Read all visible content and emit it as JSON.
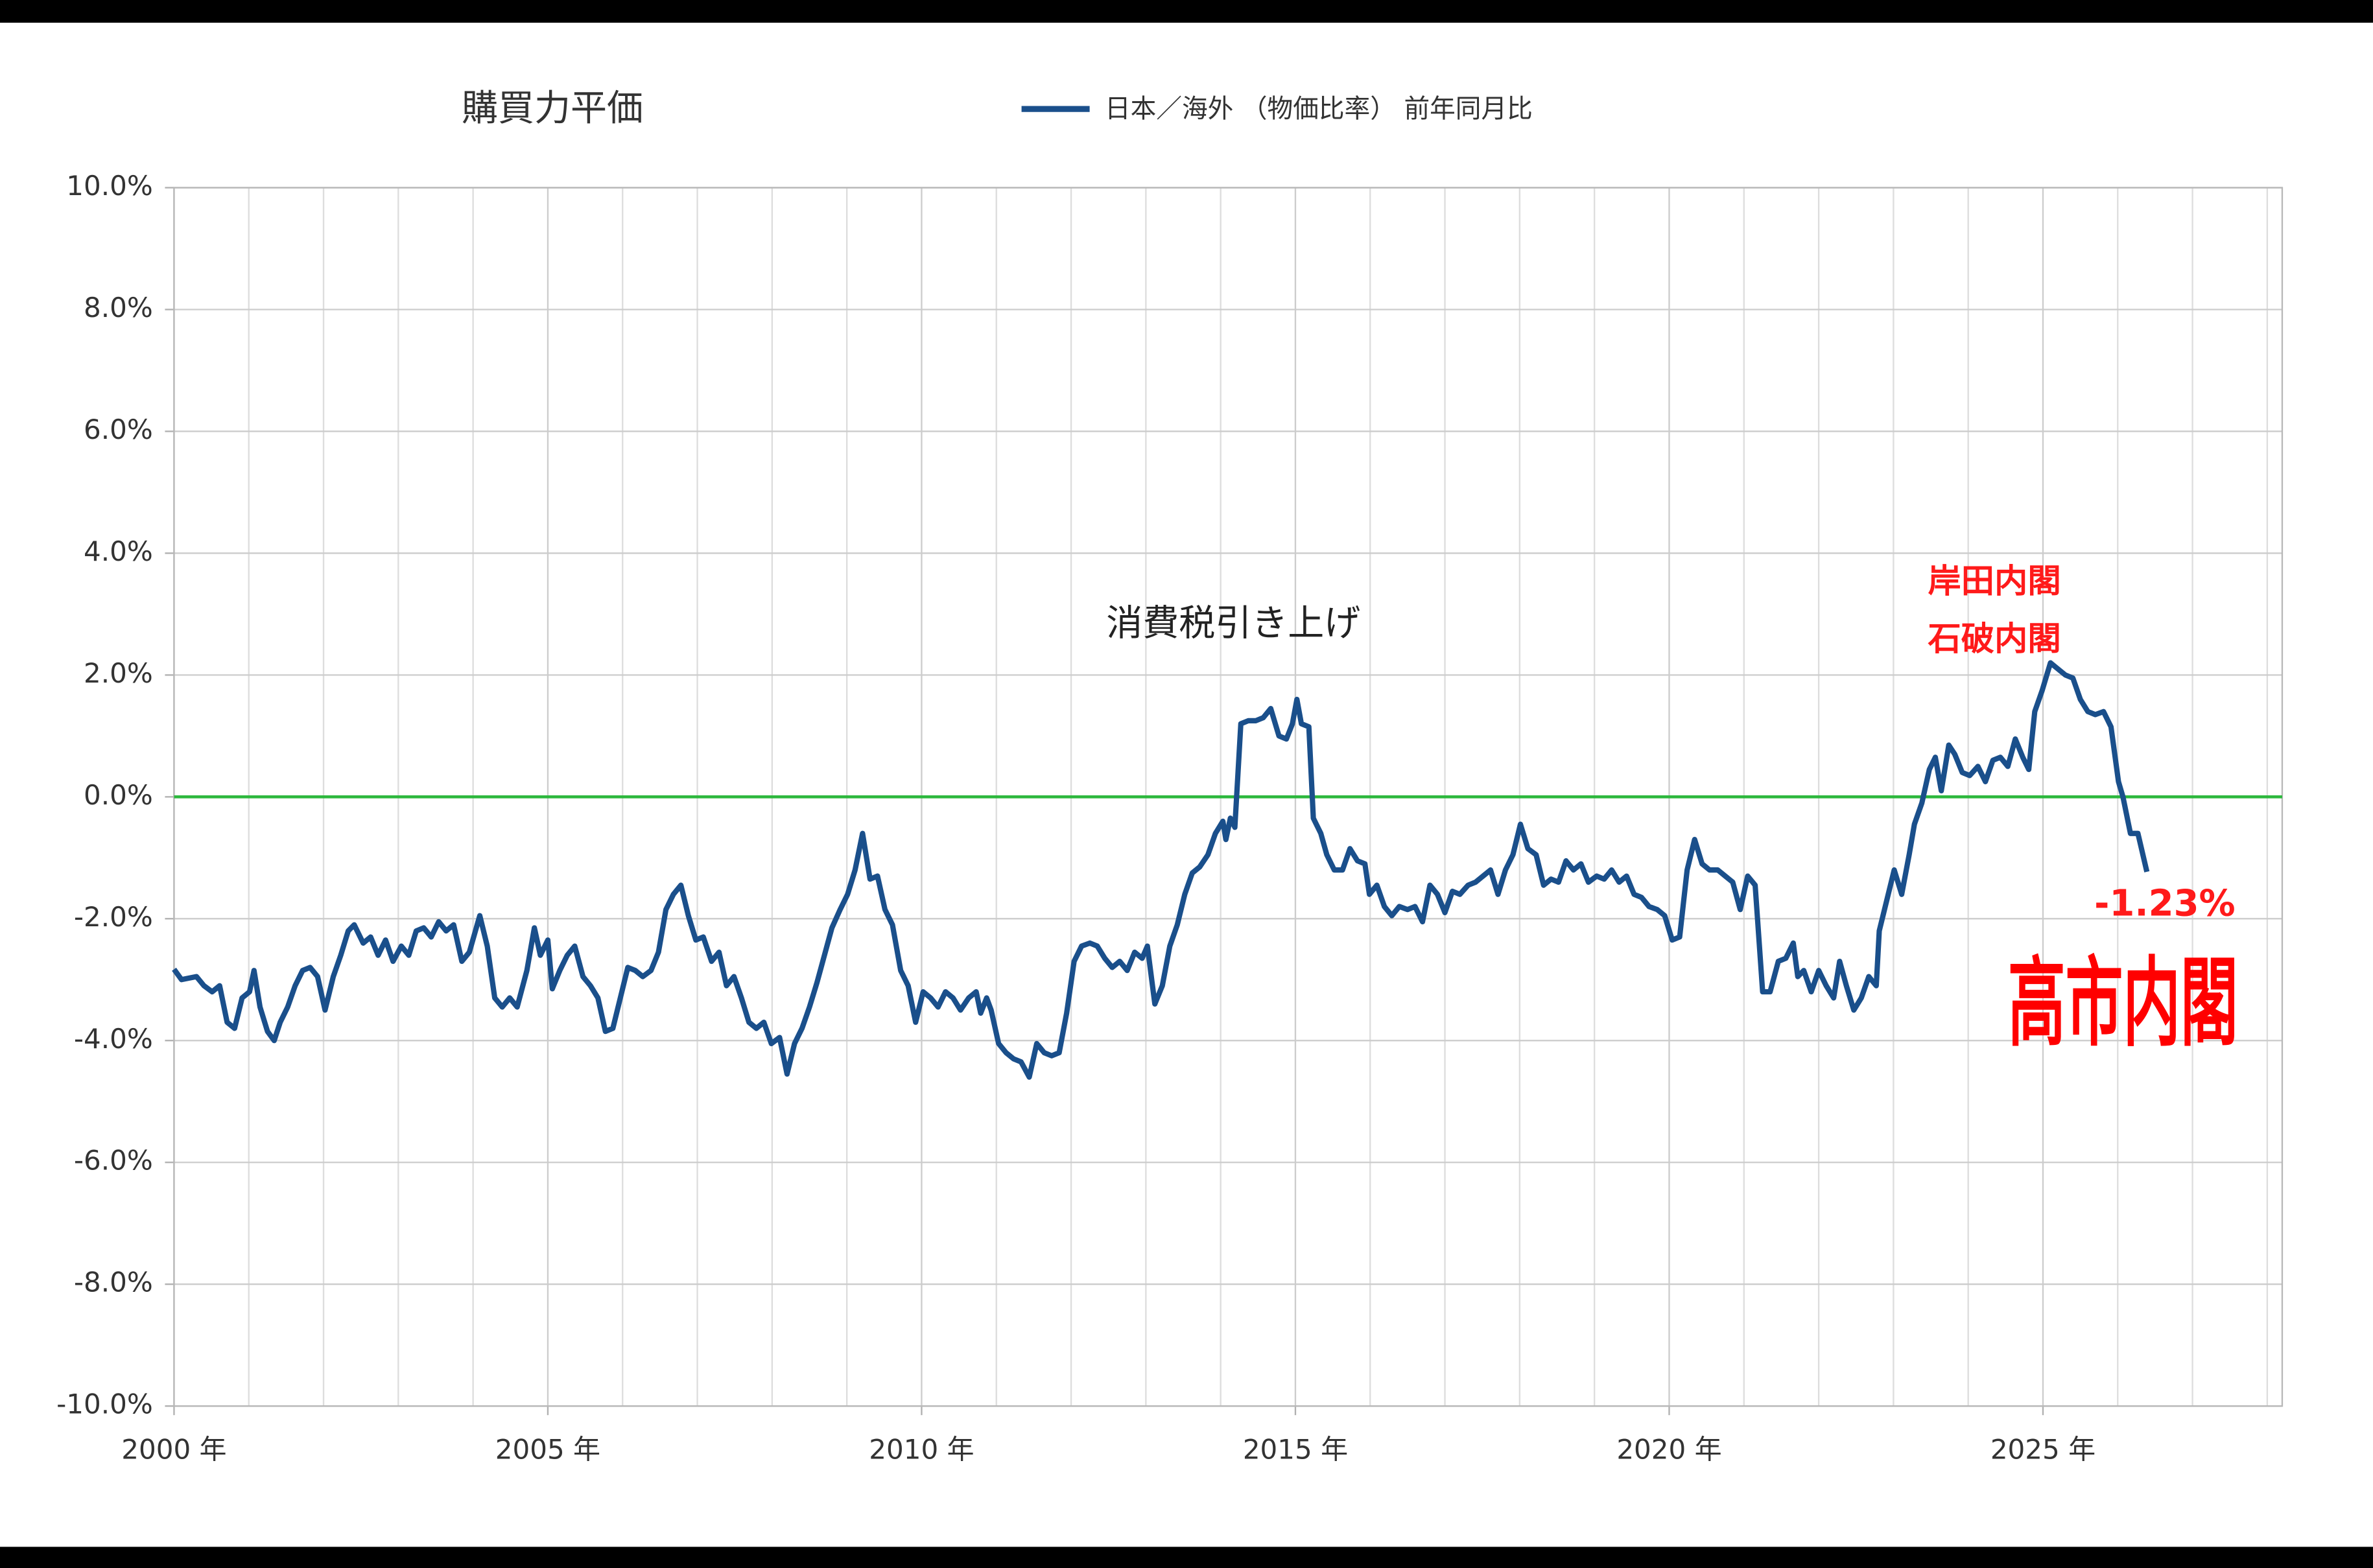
{
  "chart_data": {
    "type": "line",
    "title": "購買力平価",
    "xlim": [
      2000,
      2028.2
    ],
    "xticks": [
      {
        "value": 2000,
        "label": "2000 年"
      },
      {
        "value": 2005,
        "label": "2005 年"
      },
      {
        "value": 2010,
        "label": "2010 年"
      },
      {
        "value": 2015,
        "label": "2015 年"
      },
      {
        "value": 2020,
        "label": "2020 年"
      },
      {
        "value": 2025,
        "label": "2025 年"
      }
    ],
    "x_minor_ticks": [
      2001,
      2002,
      2003,
      2004,
      2006,
      2007,
      2008,
      2009,
      2011,
      2012,
      2013,
      2014,
      2016,
      2017,
      2018,
      2019,
      2021,
      2022,
      2023,
      2024,
      2026,
      2027,
      2028
    ],
    "ylim": [
      -10,
      10
    ],
    "yticks": [
      {
        "value": -10,
        "label": "-10.0%"
      },
      {
        "value": -8,
        "label": "-8.0%"
      },
      {
        "value": -6,
        "label": "-6.0%"
      },
      {
        "value": -4,
        "label": "-4.0%"
      },
      {
        "value": -2,
        "label": "-2.0%"
      },
      {
        "value": 0,
        "label": "0.0%"
      },
      {
        "value": 2,
        "label": "2.0%"
      },
      {
        "value": 4,
        "label": "4.0%"
      },
      {
        "value": 6,
        "label": "6.0%"
      },
      {
        "value": 8,
        "label": "8.0%"
      },
      {
        "value": 10,
        "label": "10.0%"
      }
    ],
    "grid": true,
    "reference_line": {
      "value": 0,
      "color": "#2db83d"
    },
    "legend": "top",
    "x": [
      2000.0,
      2000.1,
      2000.3,
      2000.4,
      2000.51,
      2000.61,
      2000.71,
      2000.81,
      2000.91,
      2001.01,
      2001.07,
      2001.15,
      2001.25,
      2001.34,
      2001.42,
      2001.52,
      2001.62,
      2001.72,
      2001.82,
      2001.92,
      2002.02,
      2002.13,
      2002.23,
      2002.33,
      2002.41,
      2002.53,
      2002.63,
      2002.73,
      2002.83,
      2002.93,
      2003.04,
      2003.14,
      2003.24,
      2003.34,
      2003.44,
      2003.54,
      2003.64,
      2003.74,
      2003.85,
      2003.95,
      2004.09,
      2004.19,
      2004.29,
      2004.39,
      2004.49,
      2004.59,
      2004.72,
      2004.82,
      2004.9,
      2005.0,
      2005.06,
      2005.16,
      2005.26,
      2005.36,
      2005.47,
      2005.57,
      2005.67,
      2005.77,
      2005.87,
      2005.97,
      2006.07,
      2006.17,
      2006.27,
      2006.38,
      2006.48,
      2006.58,
      2006.68,
      2006.78,
      2006.88,
      2006.98,
      2007.08,
      2007.19,
      2007.29,
      2007.39,
      2007.49,
      2007.59,
      2007.69,
      2007.79,
      2007.89,
      2007.99,
      2008.1,
      2008.2,
      2008.3,
      2008.4,
      2008.5,
      2008.6,
      2008.7,
      2008.8,
      2008.91,
      2009.01,
      2009.11,
      2009.21,
      2009.31,
      2009.41,
      2009.51,
      2009.61,
      2009.72,
      2009.82,
      2009.92,
      2010.02,
      2010.12,
      2010.22,
      2010.32,
      2010.42,
      2010.52,
      2010.63,
      2010.73,
      2010.79,
      2010.87,
      2010.93,
      2011.03,
      2011.13,
      2011.23,
      2011.33,
      2011.44,
      2011.54,
      2011.64,
      2011.74,
      2011.84,
      2011.94,
      2012.04,
      2012.14,
      2012.25,
      2012.35,
      2012.45,
      2012.55,
      2012.65,
      2012.75,
      2012.85,
      2012.95,
      2013.02,
      2013.12,
      2013.22,
      2013.32,
      2013.42,
      2013.52,
      2013.62,
      2013.72,
      2013.83,
      2013.93,
      2014.03,
      2014.07,
      2014.13,
      2014.19,
      2014.27,
      2014.37,
      2014.47,
      2014.57,
      2014.67,
      2014.78,
      2014.88,
      2014.96,
      2015.02,
      2015.08,
      2015.18,
      2015.24,
      2015.34,
      2015.42,
      2015.52,
      2015.63,
      2015.73,
      2015.83,
      2015.93,
      2015.99,
      2016.09,
      2016.19,
      2016.29,
      2016.39,
      2016.5,
      2016.6,
      2016.7,
      2016.8,
      2016.9,
      2017.0,
      2017.1,
      2017.2,
      2017.31,
      2017.41,
      2017.51,
      2017.61,
      2017.71,
      2017.81,
      2017.91,
      2018.01,
      2018.11,
      2018.22,
      2018.32,
      2018.42,
      2018.52,
      2018.62,
      2018.72,
      2018.82,
      2018.92,
      2019.03,
      2019.13,
      2019.23,
      2019.33,
      2019.43,
      2019.53,
      2019.63,
      2019.73,
      2019.84,
      2019.94,
      2020.04,
      2020.14,
      2020.24,
      2020.34,
      2020.44,
      2020.54,
      2020.65,
      2020.75,
      2020.85,
      2020.95,
      2021.05,
      2021.15,
      2021.25,
      2021.35,
      2021.46,
      2021.56,
      2021.66,
      2021.72,
      2021.8,
      2021.9,
      2022.0,
      2022.1,
      2022.2,
      2022.28,
      2022.37,
      2022.47,
      2022.57,
      2022.67,
      2022.77,
      2022.81,
      2022.91,
      2023.01,
      2023.11,
      2023.21,
      2023.28,
      2023.38,
      2023.48,
      2023.56,
      2023.64,
      2023.74,
      2023.82,
      2023.92,
      2024.02,
      2024.13,
      2024.23,
      2024.33,
      2024.43,
      2024.53,
      2024.63,
      2024.73,
      2024.81,
      2024.89,
      2024.99,
      2025.1,
      2025.2,
      2025.3,
      2025.4,
      2025.5,
      2025.6,
      2025.7,
      2025.81,
      2025.91,
      2026.01,
      2026.07,
      2026.17,
      2026.27,
      2026.39
    ],
    "series": [
      {
        "name": "日本／海外 （物価比率） 前年同月比",
        "color": "#1a4f8b",
        "values": [
          -2.83,
          -3.0,
          -2.95,
          -3.1,
          -3.2,
          -3.1,
          -3.7,
          -3.8,
          -3.3,
          -3.2,
          -2.85,
          -3.45,
          -3.85,
          -4.0,
          -3.7,
          -3.45,
          -3.1,
          -2.85,
          -2.8,
          -2.95,
          -3.5,
          -2.95,
          -2.6,
          -2.2,
          -2.1,
          -2.4,
          -2.3,
          -2.6,
          -2.35,
          -2.7,
          -2.45,
          -2.6,
          -2.2,
          -2.15,
          -2.3,
          -2.05,
          -2.2,
          -2.1,
          -2.7,
          -2.55,
          -1.95,
          -2.45,
          -3.3,
          -3.45,
          -3.3,
          -3.45,
          -2.85,
          -2.15,
          -2.6,
          -2.35,
          -3.15,
          -2.85,
          -2.6,
          -2.45,
          -2.95,
          -3.1,
          -3.3,
          -3.85,
          -3.8,
          -3.3,
          -2.8,
          -2.85,
          -2.95,
          -2.85,
          -2.55,
          -1.85,
          -1.6,
          -1.45,
          -1.95,
          -2.35,
          -2.3,
          -2.7,
          -2.55,
          -3.1,
          -2.95,
          -3.3,
          -3.7,
          -3.8,
          -3.7,
          -4.05,
          -3.95,
          -4.55,
          -4.05,
          -3.8,
          -3.45,
          -3.05,
          -2.6,
          -2.15,
          -1.85,
          -1.6,
          -1.2,
          -0.6,
          -1.35,
          -1.3,
          -1.85,
          -2.1,
          -2.85,
          -3.1,
          -3.7,
          -3.2,
          -3.3,
          -3.45,
          -3.2,
          -3.3,
          -3.5,
          -3.3,
          -3.2,
          -3.55,
          -3.3,
          -3.5,
          -4.05,
          -4.2,
          -4.3,
          -4.35,
          -4.6,
          -4.05,
          -4.2,
          -4.25,
          -4.2,
          -3.55,
          -2.7,
          -2.45,
          -2.4,
          -2.45,
          -2.65,
          -2.8,
          -2.7,
          -2.85,
          -2.55,
          -2.65,
          -2.45,
          -3.4,
          -3.1,
          -2.45,
          -2.1,
          -1.6,
          -1.25,
          -1.15,
          -0.95,
          -0.6,
          -0.4,
          -0.7,
          -0.35,
          -0.5,
          1.2,
          1.25,
          1.25,
          1.3,
          1.45,
          1.0,
          0.95,
          1.2,
          1.6,
          1.2,
          1.15,
          -0.35,
          -0.6,
          -0.95,
          -1.2,
          -1.2,
          -0.85,
          -1.05,
          -1.1,
          -1.6,
          -1.45,
          -1.8,
          -1.95,
          -1.8,
          -1.85,
          -1.8,
          -2.05,
          -1.45,
          -1.6,
          -1.9,
          -1.55,
          -1.6,
          -1.45,
          -1.4,
          -1.3,
          -1.2,
          -1.6,
          -1.2,
          -0.95,
          -0.45,
          -0.85,
          -0.95,
          -1.45,
          -1.35,
          -1.4,
          -1.05,
          -1.2,
          -1.1,
          -1.4,
          -1.3,
          -1.35,
          -1.2,
          -1.4,
          -1.3,
          -1.6,
          -1.65,
          -1.8,
          -1.85,
          -1.95,
          -2.35,
          -2.3,
          -1.2,
          -0.7,
          -1.1,
          -1.2,
          -1.2,
          -1.3,
          -1.4,
          -1.85,
          -1.3,
          -1.45,
          -3.2,
          -3.2,
          -2.7,
          -2.65,
          -2.4,
          -2.95,
          -2.85,
          -3.2,
          -2.85,
          -3.1,
          -3.3,
          -2.7,
          -3.1,
          -3.5,
          -3.3,
          -2.95,
          -3.1,
          -2.2,
          -1.7,
          -1.2,
          -1.6,
          -0.95,
          -0.45,
          -0.1,
          0.45,
          0.65,
          0.1,
          0.85,
          0.7,
          0.4,
          0.35,
          0.5,
          0.25,
          0.6,
          0.65,
          0.5,
          0.95,
          0.65,
          0.45,
          1.4,
          1.75,
          2.2,
          2.1,
          2.0,
          1.95,
          1.6,
          1.4,
          1.35,
          1.4,
          1.15,
          0.25,
          0.0,
          -0.6,
          -0.6,
          -1.23
        ]
      }
    ],
    "annotations": [
      {
        "text": "消費税引き上げ",
        "x": 2014.17,
        "y": 2.8,
        "color": "#222222"
      },
      {
        "text": "岸田内閣",
        "x": 2024.35,
        "y": 3.5,
        "color": "#ff1a1a"
      },
      {
        "text": "石破内閣",
        "x": 2024.35,
        "y": 2.55,
        "color": "#ff1a1a"
      },
      {
        "text": "-1.23%",
        "x": 2026.63,
        "y": -1.78,
        "color": "#ff1a1a"
      },
      {
        "text": "高市内閣",
        "x": 2026.07,
        "y": -3.5,
        "color": "#ff0000"
      }
    ]
  }
}
